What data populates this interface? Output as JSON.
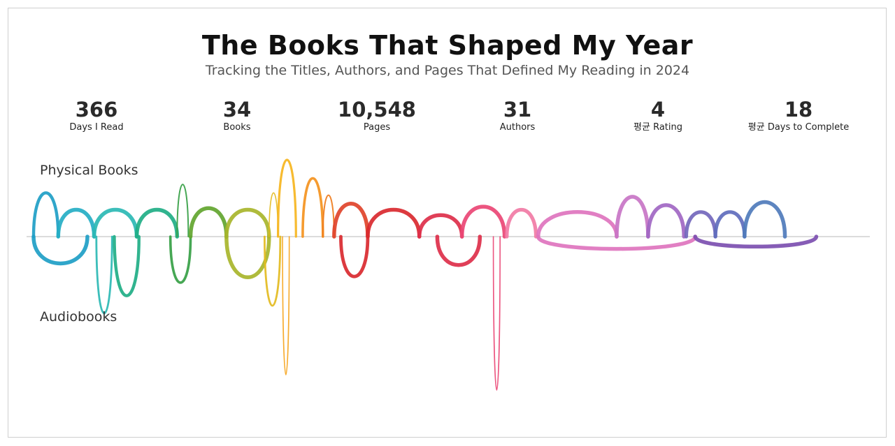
{
  "header": {
    "title": "The Books That Shaped My Year",
    "subtitle": "Tracking the Titles, Authors, and Pages That Defined My Reading in 2024"
  },
  "stats": [
    {
      "value": "366",
      "label": "Days I Read"
    },
    {
      "value": "34",
      "label": "Books"
    },
    {
      "value": "10,548",
      "label": "Pages"
    },
    {
      "value": "31",
      "label": "Authors"
    },
    {
      "value": "4",
      "label": "평균 Rating"
    },
    {
      "value": "18",
      "label": "평균 Days to Complete"
    }
  ],
  "lanes": {
    "top": "Physical Books",
    "bottom": "Audiobooks"
  },
  "chart_data": {
    "type": "arc",
    "title": "The Books That Shaped My Year",
    "subtitle": "Tracking the Titles, Authors, and Pages That Defined My Reading in 2024",
    "x_unit": "day of 2024 reading year",
    "x_range": [
      0,
      366
    ],
    "y_unit": "relative size",
    "legend": "none",
    "grid": false,
    "baseline_color": "#d0d0d0",
    "physical_books": [
      {
        "start": 0,
        "end": 11,
        "size": 0.57,
        "color": "#1e9ec6"
      },
      {
        "start": 11,
        "end": 27,
        "size": 0.35,
        "color": "#25aec4"
      },
      {
        "start": 27,
        "end": 46,
        "size": 0.35,
        "color": "#2bb9b4"
      },
      {
        "start": 46,
        "end": 64,
        "size": 0.35,
        "color": "#1fae86"
      },
      {
        "start": 64,
        "end": 69,
        "size": 0.68,
        "color": "#36a045"
      },
      {
        "start": 70,
        "end": 86,
        "size": 0.37,
        "color": "#62a52f"
      },
      {
        "start": 86,
        "end": 105,
        "size": 0.35,
        "color": "#a8b52b"
      },
      {
        "start": 105,
        "end": 109,
        "size": 0.57,
        "color": "#e3bb20"
      },
      {
        "start": 109,
        "end": 117,
        "size": 1.0,
        "color": "#f6b51e"
      },
      {
        "start": 120,
        "end": 129,
        "size": 0.76,
        "color": "#f4931e"
      },
      {
        "start": 129,
        "end": 134,
        "size": 0.54,
        "color": "#ef7c1d"
      },
      {
        "start": 134,
        "end": 149,
        "size": 0.43,
        "color": "#e0432a"
      },
      {
        "start": 149,
        "end": 172,
        "size": 0.35,
        "color": "#d9292f"
      },
      {
        "start": 172,
        "end": 191,
        "size": 0.28,
        "color": "#dd2f4a"
      },
      {
        "start": 191,
        "end": 210,
        "size": 0.39,
        "color": "#ea4675"
      },
      {
        "start": 211,
        "end": 224,
        "size": 0.35,
        "color": "#f17ba5"
      },
      {
        "start": 225,
        "end": 260,
        "size": 0.32,
        "color": "#de74be"
      },
      {
        "start": 260,
        "end": 274,
        "size": 0.52,
        "color": "#c875c6"
      },
      {
        "start": 274,
        "end": 290,
        "size": 0.41,
        "color": "#a167c3"
      },
      {
        "start": 291,
        "end": 304,
        "size": 0.32,
        "color": "#7367bc"
      },
      {
        "start": 304,
        "end": 317,
        "size": 0.32,
        "color": "#5f6cbd"
      },
      {
        "start": 317,
        "end": 335,
        "size": 0.45,
        "color": "#4f7bbb"
      }
    ],
    "audiobooks": [
      {
        "start": 0,
        "end": 24,
        "size": 0.35,
        "color": "#1e9ec6"
      },
      {
        "start": 28,
        "end": 35,
        "size": 1.0,
        "color": "#2bb9b4"
      },
      {
        "start": 36,
        "end": 47,
        "size": 0.77,
        "color": "#1fae86"
      },
      {
        "start": 61,
        "end": 70,
        "size": 0.6,
        "color": "#36a045"
      },
      {
        "start": 86,
        "end": 105,
        "size": 0.53,
        "color": "#a8b52b"
      },
      {
        "start": 103,
        "end": 110,
        "size": 0.9,
        "color": "#e3bb20"
      },
      {
        "start": 111,
        "end": 114,
        "size": 1.8,
        "color": "#f6a51e"
      },
      {
        "start": 137,
        "end": 149,
        "size": 0.52,
        "color": "#d9292f"
      },
      {
        "start": 180,
        "end": 199,
        "size": 0.37,
        "color": "#dd2f4a"
      },
      {
        "start": 205,
        "end": 208,
        "size": 2.0,
        "color": "#ea4675"
      },
      {
        "start": 225,
        "end": 295,
        "size": 0.16,
        "color": "#de74be"
      },
      {
        "start": 295,
        "end": 349,
        "size": 0.13,
        "color": "#7c4fb0"
      }
    ]
  }
}
